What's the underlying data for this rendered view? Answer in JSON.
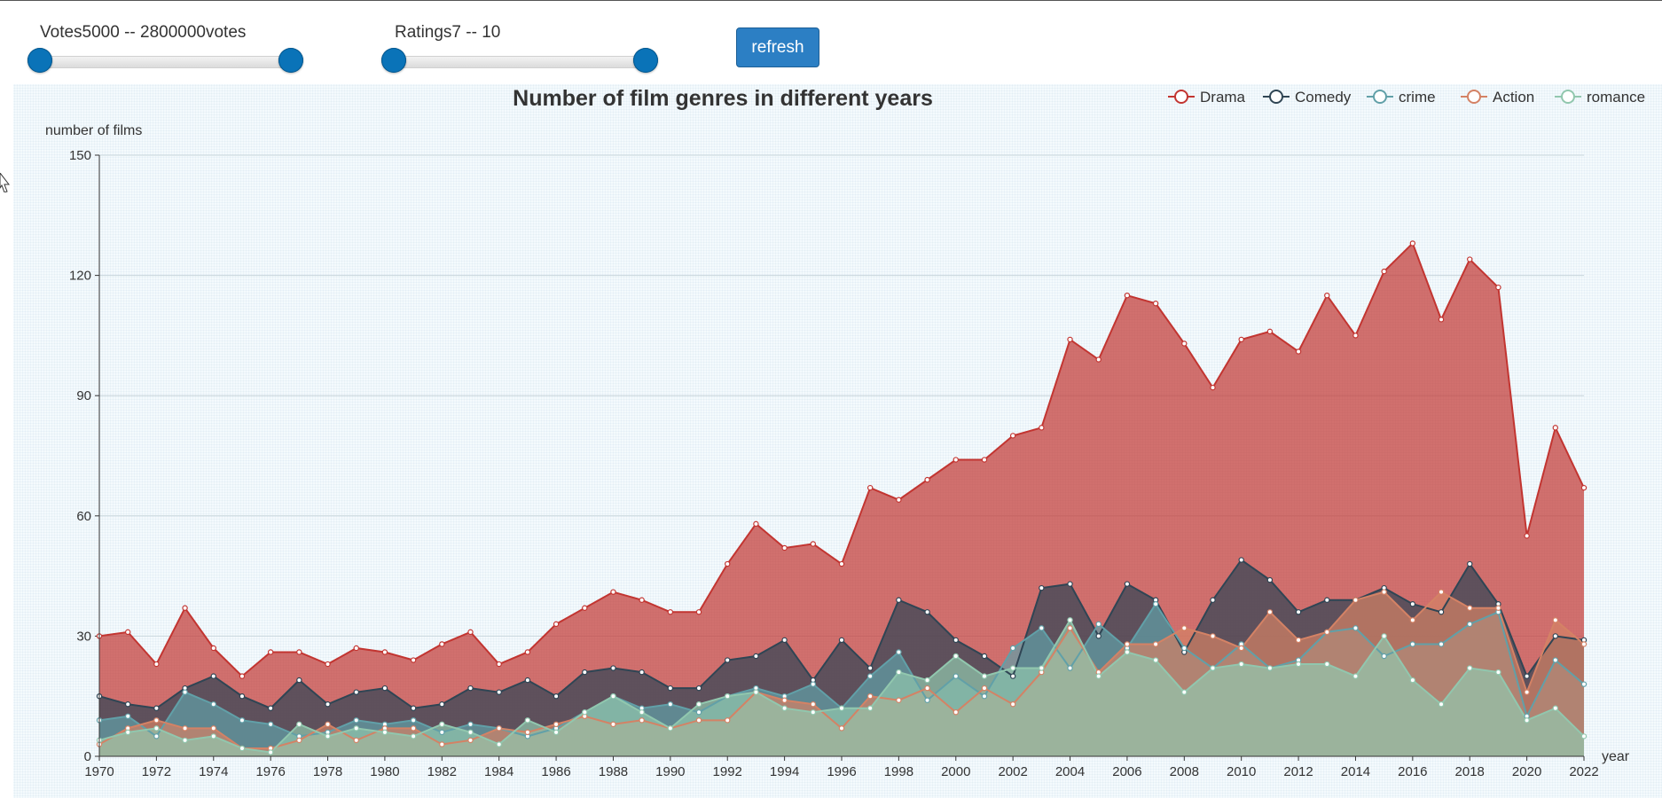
{
  "controls": {
    "votes_slider": {
      "label": "Votes5000 -- 2800000votes",
      "low": 5000,
      "high": 2800000,
      "min": 5000,
      "max": 2800000
    },
    "ratings_slider": {
      "label": "Ratings7 -- 10",
      "low": 7,
      "high": 10,
      "min": 7,
      "max": 10
    },
    "refresh_label": "refresh"
  },
  "chart_data": {
    "type": "area",
    "title": "Number of film genres in different years",
    "xlabel": "year",
    "ylabel": "number of films",
    "ylim": [
      0,
      150
    ],
    "yticks": [
      0,
      30,
      60,
      90,
      120,
      150
    ],
    "legend_position": "top-right",
    "x": [
      1970,
      1971,
      1972,
      1973,
      1974,
      1975,
      1976,
      1977,
      1978,
      1979,
      1980,
      1981,
      1982,
      1983,
      1984,
      1985,
      1986,
      1987,
      1988,
      1989,
      1990,
      1991,
      1992,
      1993,
      1994,
      1995,
      1996,
      1997,
      1998,
      1999,
      2000,
      2001,
      2002,
      2003,
      2004,
      2005,
      2006,
      2007,
      2008,
      2009,
      2010,
      2011,
      2012,
      2013,
      2014,
      2015,
      2016,
      2017,
      2018,
      2019,
      2020,
      2021,
      2022
    ],
    "xticks": [
      "1970",
      "1972",
      "1974",
      "1976",
      "1978",
      "1980",
      "1982",
      "1984",
      "1986",
      "1988",
      "1990",
      "1992",
      "1994",
      "1996",
      "1998",
      "2000",
      "2002",
      "2004",
      "2006",
      "2008",
      "2010",
      "2012",
      "2014",
      "2016",
      "2018",
      "2020",
      "2022"
    ],
    "series": [
      {
        "name": "Drama",
        "color": "#c23531",
        "values": [
          30,
          31,
          23,
          37,
          27,
          20,
          26,
          26,
          23,
          27,
          26,
          24,
          28,
          31,
          23,
          26,
          33,
          37,
          41,
          39,
          36,
          36,
          48,
          58,
          52,
          53,
          48,
          67,
          64,
          69,
          74,
          74,
          80,
          82,
          104,
          99,
          115,
          113,
          103,
          92,
          104,
          106,
          101,
          115,
          105,
          121,
          128,
          109,
          124,
          117,
          55,
          82,
          67
        ]
      },
      {
        "name": "Comedy",
        "color": "#2f4554",
        "values": [
          15,
          13,
          12,
          17,
          20,
          15,
          12,
          19,
          13,
          16,
          17,
          12,
          13,
          17,
          16,
          19,
          15,
          21,
          22,
          21,
          17,
          17,
          24,
          25,
          29,
          19,
          29,
          22,
          39,
          36,
          29,
          25,
          20,
          42,
          43,
          30,
          43,
          39,
          26,
          39,
          49,
          44,
          36,
          39,
          39,
          42,
          38,
          36,
          48,
          38,
          20,
          30,
          29
        ]
      },
      {
        "name": "crime",
        "color": "#61a0a8",
        "values": [
          9,
          10,
          5,
          16,
          13,
          9,
          8,
          5,
          6,
          9,
          8,
          9,
          6,
          8,
          7,
          5,
          7,
          11,
          15,
          12,
          13,
          11,
          15,
          17,
          15,
          18,
          12,
          20,
          26,
          14,
          20,
          15,
          27,
          32,
          22,
          33,
          27,
          38,
          27,
          22,
          28,
          22,
          24,
          31,
          32,
          25,
          28,
          28,
          33,
          36,
          10,
          24,
          18
        ]
      },
      {
        "name": "Action",
        "color": "#d48265",
        "values": [
          3,
          7,
          9,
          7,
          7,
          2,
          2,
          4,
          8,
          4,
          7,
          7,
          3,
          4,
          7,
          6,
          8,
          10,
          8,
          9,
          7,
          9,
          9,
          16,
          14,
          13,
          7,
          15,
          14,
          17,
          11,
          17,
          13,
          21,
          32,
          21,
          28,
          28,
          32,
          30,
          27,
          36,
          29,
          31,
          39,
          41,
          34,
          41,
          37,
          37,
          16,
          34,
          28
        ]
      },
      {
        "name": "romance",
        "color": "#91c7ae",
        "values": [
          4,
          6,
          7,
          4,
          5,
          2,
          1,
          8,
          5,
          7,
          6,
          5,
          8,
          6,
          3,
          9,
          6,
          11,
          15,
          11,
          7,
          13,
          15,
          16,
          12,
          11,
          12,
          12,
          21,
          19,
          25,
          20,
          22,
          22,
          34,
          20,
          26,
          24,
          16,
          22,
          23,
          22,
          23,
          23,
          20,
          30,
          19,
          13,
          22,
          21,
          9,
          12,
          5
        ]
      }
    ]
  }
}
